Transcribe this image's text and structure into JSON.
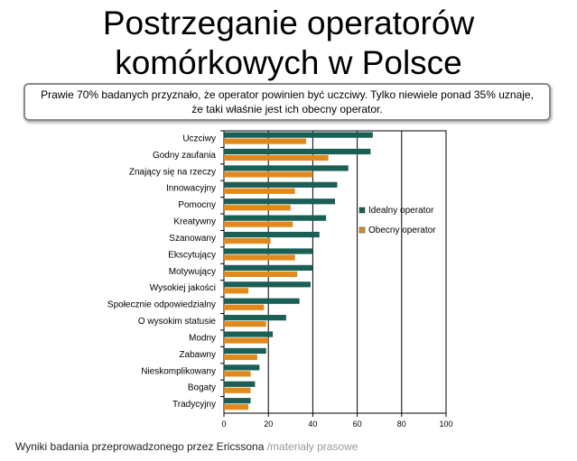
{
  "title": {
    "line1": "Postrzeganie operatorów",
    "line2": "komórkowych w Polsce"
  },
  "callout": {
    "line1": "Prawie 70% badanych przyznało, że operator powinien być uczciwy. Tylko niewiele ponad 35% uznaje,",
    "line2": "że taki właśnie jest ich obecny operator."
  },
  "caption": {
    "text": "Wyniki badania przeprowadzonego przez Ericssona",
    "source": "/materiały prasowe"
  },
  "chart_data": {
    "type": "bar",
    "orientation": "horizontal",
    "categories": [
      "Uczciwy",
      "Godny zaufania",
      "Znający się na rzeczy",
      "Innowacyjny",
      "Pomocny",
      "Kreatywny",
      "Szanowany",
      "Ekscytujący",
      "Motywujący",
      "Wysokiej jakości",
      "Społecznie odpowiedzialny",
      "O wysokim statusie",
      "Modny",
      "Zabawny",
      "Nieskomplikowany",
      "Bogaty",
      "Tradycyjny"
    ],
    "series": [
      {
        "name": "Idealny operator",
        "color": "#1a5e55",
        "values": [
          67,
          66,
          56,
          51,
          50,
          46,
          43,
          40,
          40,
          39,
          34,
          28,
          22,
          19,
          16,
          14,
          12
        ]
      },
      {
        "name": "Obecny operator",
        "color": "#e08a1e",
        "values": [
          37,
          47,
          40,
          32,
          30,
          31,
          21,
          32,
          33,
          11,
          18,
          19,
          20,
          15,
          12,
          12,
          11
        ]
      }
    ],
    "xlim": [
      0,
      100
    ],
    "xticks": [
      0,
      20,
      40,
      60,
      80,
      100
    ],
    "grid": true,
    "legend": "right"
  }
}
